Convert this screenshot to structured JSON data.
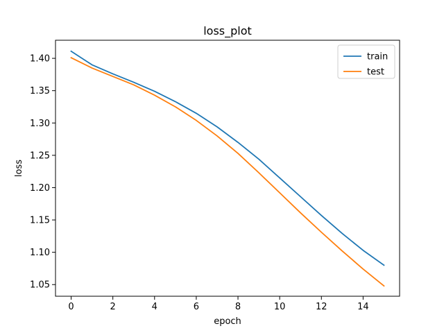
{
  "chart_data": {
    "type": "line",
    "title": "loss_plot",
    "xlabel": "epoch",
    "ylabel": "loss",
    "xlim": [
      -0.75,
      15.75
    ],
    "ylim": [
      1.032,
      1.428
    ],
    "xticks": [
      0,
      2,
      4,
      6,
      8,
      10,
      12,
      14
    ],
    "yticks": [
      1.05,
      1.1,
      1.15,
      1.2,
      1.25,
      1.3,
      1.35,
      1.4
    ],
    "ytick_labels": [
      "1.05",
      "1.10",
      "1.15",
      "1.20",
      "1.25",
      "1.30",
      "1.35",
      "1.40"
    ],
    "grid": false,
    "legend_position": "top-right",
    "x": [
      0,
      1,
      2,
      3,
      4,
      5,
      6,
      7,
      8,
      9,
      10,
      11,
      12,
      13,
      14,
      15
    ],
    "series": [
      {
        "name": "train",
        "color": "#1f77b4",
        "values": [
          1.411,
          1.39,
          1.376,
          1.363,
          1.349,
          1.333,
          1.315,
          1.294,
          1.27,
          1.244,
          1.215,
          1.186,
          1.157,
          1.129,
          1.103,
          1.08
        ]
      },
      {
        "name": "test",
        "color": "#ff7f0e",
        "values": [
          1.401,
          1.385,
          1.372,
          1.359,
          1.343,
          1.325,
          1.304,
          1.28,
          1.253,
          1.223,
          1.192,
          1.161,
          1.131,
          1.102,
          1.074,
          1.048
        ]
      }
    ]
  }
}
